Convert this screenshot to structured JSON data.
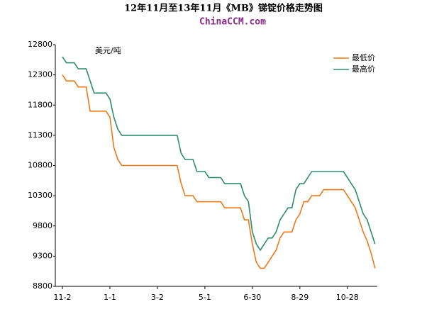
{
  "chart_data": {
    "type": "line",
    "title": "12年11月至13年11月《MB》锑锭价格走势图",
    "subtitle": "ChinaCCM.com",
    "y_label": "美元/吨",
    "categories": [
      "11-2",
      null,
      null,
      null,
      null,
      null,
      null,
      null,
      null,
      null,
      null,
      null,
      "1-1",
      null,
      null,
      null,
      null,
      null,
      null,
      null,
      null,
      null,
      null,
      null,
      "3-2",
      null,
      null,
      null,
      null,
      null,
      null,
      null,
      null,
      null,
      null,
      null,
      "5-1",
      null,
      null,
      null,
      null,
      null,
      null,
      null,
      null,
      null,
      null,
      null,
      "6-30",
      null,
      null,
      null,
      null,
      null,
      null,
      null,
      null,
      null,
      null,
      null,
      "8-29",
      null,
      null,
      null,
      null,
      null,
      null,
      null,
      null,
      null,
      null,
      null,
      "10-28",
      null,
      null,
      null,
      null,
      null,
      null,
      null
    ],
    "series": [
      {
        "name": "最低价",
        "color": "#f07818",
        "values": [
          12300,
          12200,
          12200,
          12200,
          12100,
          12100,
          12100,
          11700,
          11700,
          11700,
          11700,
          11700,
          11600,
          11100,
          10900,
          10800,
          10800,
          10800,
          10800,
          10800,
          10800,
          10800,
          10800,
          10800,
          10800,
          10800,
          10800,
          10800,
          10800,
          10800,
          10500,
          10300,
          10300,
          10300,
          10200,
          10200,
          10200,
          10200,
          10200,
          10200,
          10200,
          10100,
          10100,
          10100,
          10100,
          10100,
          9900,
          9900,
          9500,
          9200,
          9100,
          9100,
          9200,
          9300,
          9400,
          9600,
          9700,
          9700,
          9700,
          9900,
          10000,
          10200,
          10200,
          10300,
          10300,
          10300,
          10400,
          10400,
          10400,
          10400,
          10400,
          10400,
          10300,
          10200,
          10100,
          9900,
          9700,
          9550,
          9350,
          9100
        ]
      },
      {
        "name": "最高价",
        "color": "#2e8b6e",
        "values": [
          12600,
          12500,
          12500,
          12500,
          12400,
          12400,
          12400,
          12200,
          12000,
          12000,
          12000,
          12000,
          11900,
          11600,
          11400,
          11300,
          11300,
          11300,
          11300,
          11300,
          11300,
          11300,
          11300,
          11300,
          11300,
          11300,
          11300,
          11300,
          11300,
          11300,
          11000,
          10900,
          10900,
          10900,
          10700,
          10700,
          10700,
          10600,
          10600,
          10600,
          10600,
          10500,
          10500,
          10500,
          10500,
          10500,
          10300,
          10200,
          9700,
          9500,
          9400,
          9500,
          9600,
          9600,
          9700,
          9900,
          10000,
          10100,
          10100,
          10400,
          10500,
          10500,
          10600,
          10700,
          10700,
          10700,
          10700,
          10700,
          10700,
          10700,
          10700,
          10700,
          10600,
          10500,
          10400,
          10200,
          10000,
          9900,
          9700,
          9500
        ]
      }
    ],
    "ylim": [
      8800,
      12800
    ],
    "yticks": [
      8800,
      9300,
      9800,
      10300,
      10800,
      11300,
      11800,
      12300,
      12800
    ],
    "legend": "top-right"
  }
}
